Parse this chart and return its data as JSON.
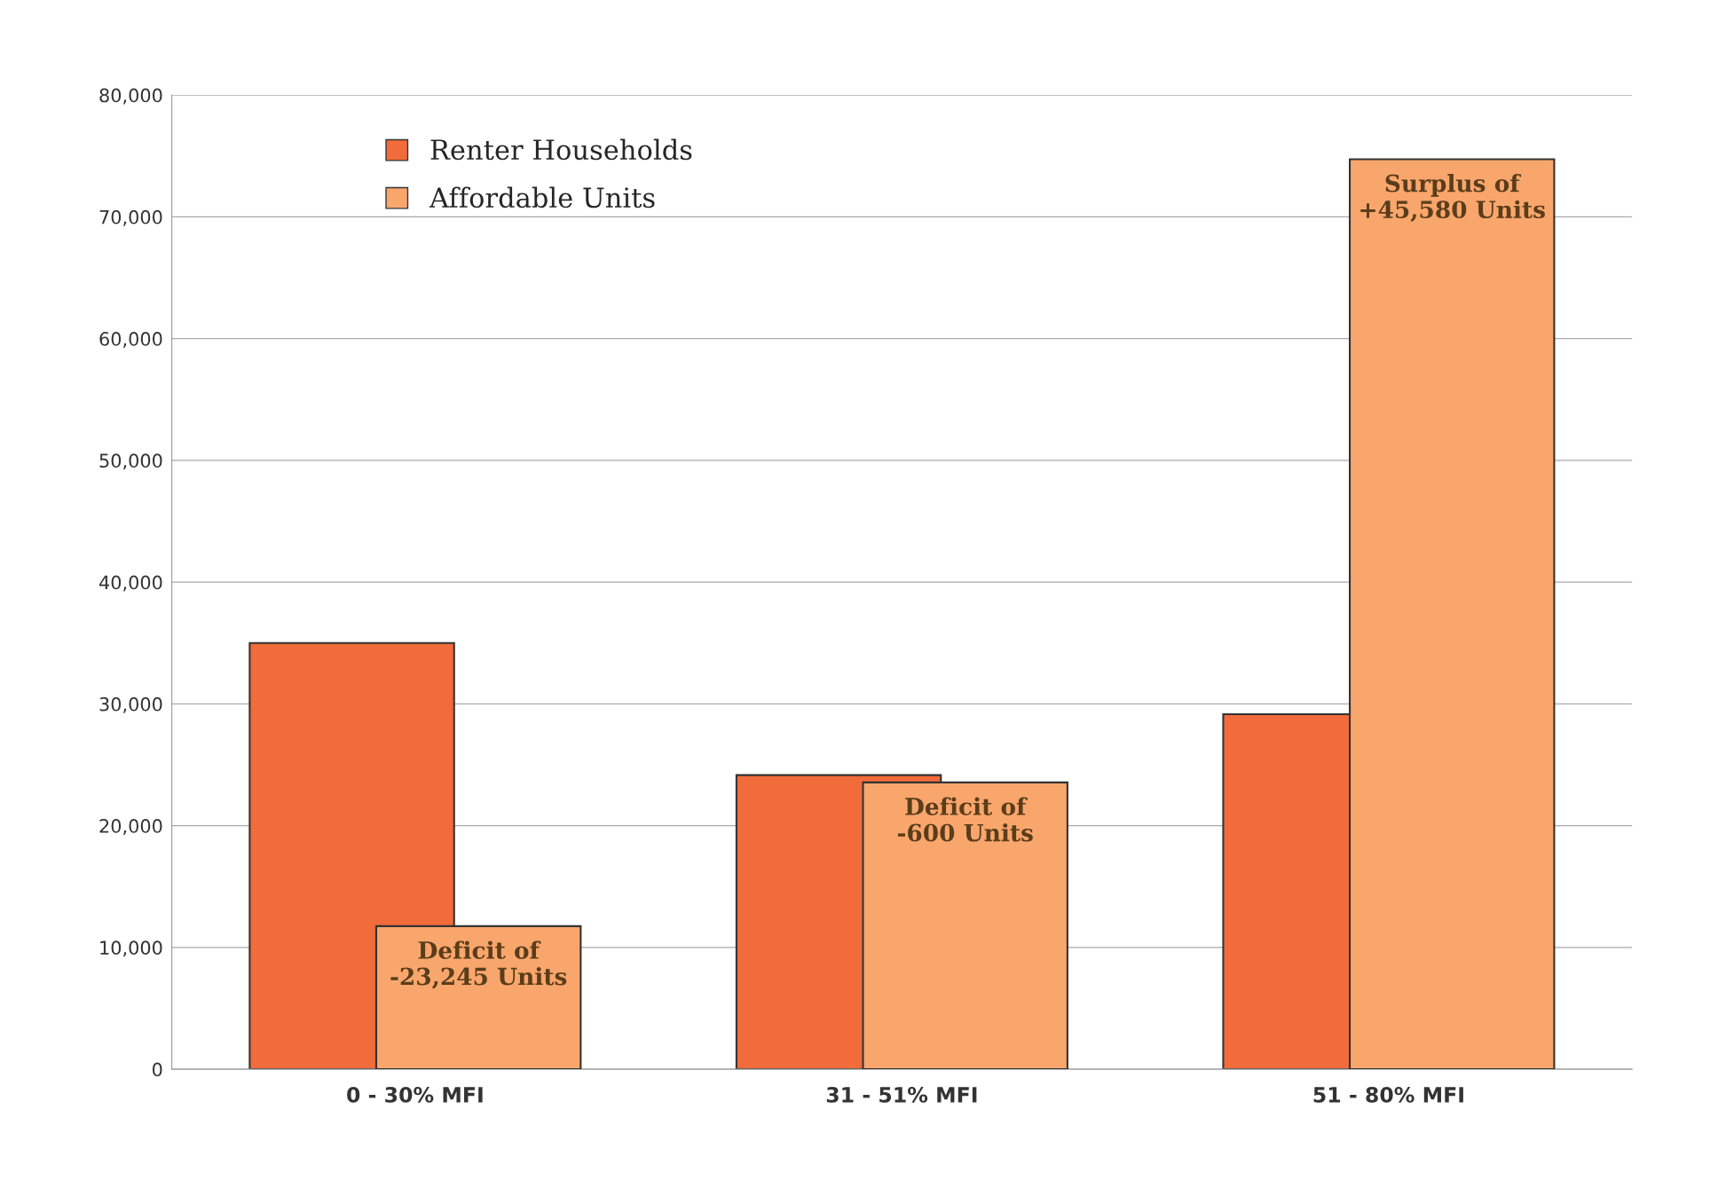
{
  "chart_data": {
    "type": "bar",
    "categories": [
      "0 - 30% MFI",
      "31 - 51% MFI",
      "51 - 80% MFI"
    ],
    "series": [
      {
        "name": "Renter Households",
        "color": "#f26b3a",
        "values": [
          35000,
          24150,
          29150
        ]
      },
      {
        "name": "Affordable Units",
        "color": "#f9a66c",
        "values": [
          11750,
          23550,
          74730
        ]
      }
    ],
    "ylim": [
      0,
      80000
    ],
    "yticks": [
      {
        "value": 0,
        "label": "0"
      },
      {
        "value": 10000,
        "label": "10,000"
      },
      {
        "value": 20000,
        "label": "20,000"
      },
      {
        "value": 30000,
        "label": "30,000"
      },
      {
        "value": 40000,
        "label": "40,000"
      },
      {
        "value": 50000,
        "label": "50,000"
      },
      {
        "value": 60000,
        "label": "60,000"
      },
      {
        "value": 70000,
        "label": "70,000"
      },
      {
        "value": 80000,
        "label": "80,000"
      }
    ],
    "grid": "y",
    "legend": "top left",
    "annotations": [
      "Deficit of\n-23,245 Units",
      "Deficit of\n-600 Units",
      "Surplus of\n+45,580 Units"
    ]
  }
}
